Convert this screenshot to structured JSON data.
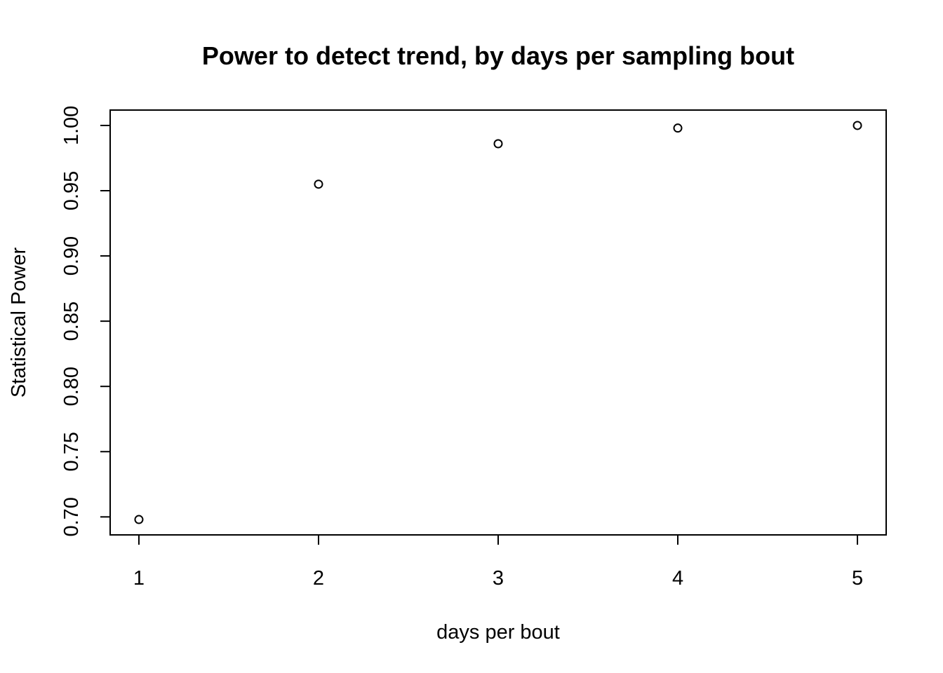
{
  "chart_data": {
    "type": "scatter",
    "title": "Power to detect trend, by days per sampling bout",
    "xlabel": "days per bout",
    "ylabel": "Statistical Power",
    "x": [
      1,
      2,
      3,
      4,
      5
    ],
    "y": [
      0.698,
      0.955,
      0.986,
      0.998,
      1.0
    ],
    "xlim": [
      0.84,
      5.16
    ],
    "ylim": [
      0.6862,
      1.0118
    ],
    "x_ticks": [
      "1",
      "2",
      "3",
      "4",
      "5"
    ],
    "y_ticks": [
      "0.70",
      "0.75",
      "0.80",
      "0.85",
      "0.90",
      "0.95",
      "1.00"
    ],
    "marker": "open-circle",
    "grid": false,
    "legend": "none",
    "point_color": "#000000"
  }
}
